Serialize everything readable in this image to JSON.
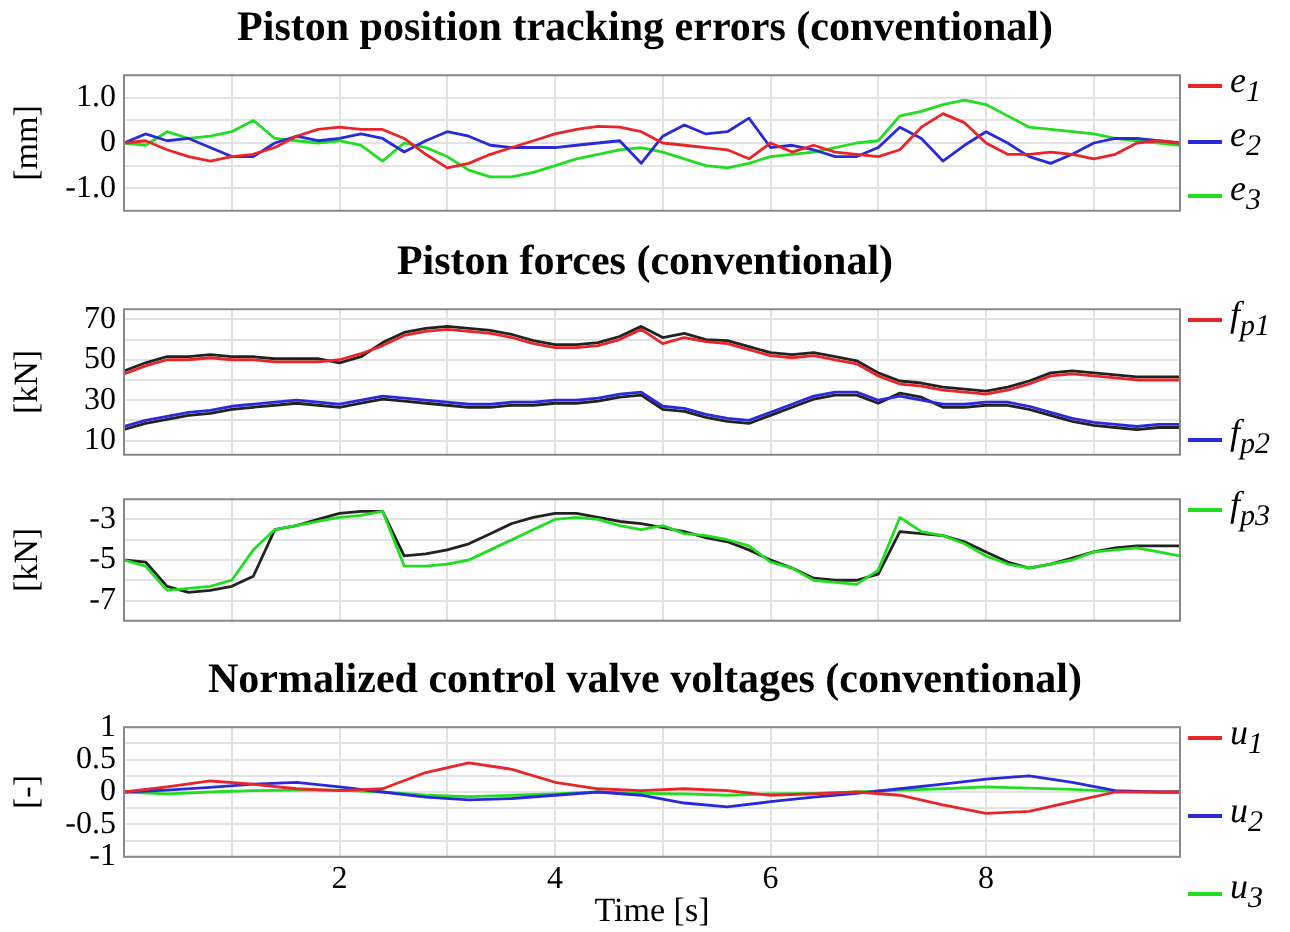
{
  "chart_data": [
    {
      "type": "line",
      "title": "Piston position tracking errors (conventional)",
      "ylabel": "[mm]",
      "legend": "right",
      "grid": true,
      "tick_labels": "y",
      "x": [
        0,
        0.2,
        0.4,
        0.6,
        0.8,
        1,
        1.2,
        1.4,
        1.6,
        1.8,
        2,
        2.2,
        2.4,
        2.6,
        2.8,
        3,
        3.2,
        3.4,
        3.6,
        3.8,
        4,
        4.2,
        4.4,
        4.6,
        4.8,
        5,
        5.2,
        5.4,
        5.6,
        5.8,
        6,
        6.2,
        6.4,
        6.6,
        6.8,
        7,
        7.2,
        7.4,
        7.6,
        7.8,
        8,
        8.2,
        8.4,
        8.6,
        8.8,
        9,
        9.2,
        9.4,
        9.6,
        9.8
      ],
      "xlim": [
        0,
        9.8
      ],
      "xticks": [
        {
          "value": 1,
          "label": null
        },
        2,
        {
          "value": 3,
          "label": null
        },
        4,
        {
          "value": 5,
          "label": null
        },
        6,
        {
          "value": 7,
          "label": null
        },
        8,
        {
          "value": 9,
          "label": null
        }
      ],
      "ylim": [
        -1.5,
        1.5
      ],
      "yticks": [
        {
          "value": -1,
          "label": "-1.0"
        },
        {
          "value": -0.5,
          "label": null
        },
        0,
        {
          "value": 0.5,
          "label": null
        },
        {
          "value": 1,
          "label": "1.0"
        }
      ],
      "series": [
        {
          "name": "e$_{1}$",
          "color": "#e8262a",
          "values": [
            0,
            0.05,
            -0.15,
            -0.3,
            -0.4,
            -0.3,
            -0.25,
            -0.1,
            0.15,
            0.3,
            0.35,
            0.3,
            0.3,
            0.1,
            -0.25,
            -0.55,
            -0.45,
            -0.25,
            -0.1,
            0.05,
            0.2,
            0.3,
            0.37,
            0.35,
            0.25,
            0,
            -0.05,
            -0.1,
            -0.15,
            -0.35,
            0,
            -0.2,
            -0.05,
            -0.2,
            -0.25,
            -0.3,
            -0.15,
            0.35,
            0.65,
            0.45,
            0,
            -0.25,
            -0.25,
            -0.2,
            -0.25,
            -0.35,
            -0.25,
            0,
            0.05,
            0
          ]
        },
        {
          "name": "e$_{2}$",
          "color": "#2a2ad8",
          "values": [
            0,
            0.2,
            0.05,
            0.1,
            -0.1,
            -0.3,
            -0.3,
            0,
            0.15,
            0.05,
            0.1,
            0.2,
            0.1,
            -0.2,
            0.05,
            0.25,
            0.15,
            -0.05,
            -0.1,
            -0.1,
            -0.1,
            -0.05,
            0,
            0.05,
            -0.45,
            0.15,
            0.4,
            0.2,
            0.25,
            0.55,
            -0.1,
            -0.05,
            -0.15,
            -0.3,
            -0.3,
            -0.1,
            0.35,
            0.1,
            -0.4,
            -0.05,
            0.25,
            0,
            -0.3,
            -0.45,
            -0.25,
            0,
            0.1,
            0.1,
            0.05,
            0
          ]
        },
        {
          "name": "e$_{3}$",
          "color": "#22dd22",
          "values": [
            0,
            -0.05,
            0.25,
            0.1,
            0.15,
            0.25,
            0.5,
            0.1,
            0.05,
            0,
            0.05,
            -0.05,
            -0.4,
            0,
            -0.1,
            -0.3,
            -0.6,
            -0.75,
            -0.75,
            -0.65,
            -0.5,
            -0.35,
            -0.25,
            -0.15,
            -0.1,
            -0.2,
            -0.35,
            -0.5,
            -0.55,
            -0.45,
            -0.3,
            -0.25,
            -0.2,
            -0.1,
            0,
            0.05,
            0.6,
            0.7,
            0.85,
            0.95,
            0.85,
            0.6,
            0.35,
            0.3,
            0.25,
            0.2,
            0.1,
            0.05,
            0,
            -0.05
          ]
        }
      ]
    },
    {
      "type": "line",
      "title": "Piston forces (conventional)",
      "ylabel": "[kN]",
      "legend": "right",
      "grid": true,
      "tick_labels": "y",
      "x": [
        0,
        0.2,
        0.4,
        0.6,
        0.8,
        1,
        1.2,
        1.4,
        1.6,
        1.8,
        2,
        2.2,
        2.4,
        2.6,
        2.8,
        3,
        3.2,
        3.4,
        3.6,
        3.8,
        4,
        4.2,
        4.4,
        4.6,
        4.8,
        5,
        5.2,
        5.4,
        5.6,
        5.8,
        6,
        6.2,
        6.4,
        6.6,
        6.8,
        7,
        7.2,
        7.4,
        7.6,
        7.8,
        8,
        8.2,
        8.4,
        8.6,
        8.8,
        9,
        9.2,
        9.4,
        9.6,
        9.8
      ],
      "xlim": [
        0,
        9.8
      ],
      "xticks": [
        {
          "value": 1,
          "label": null
        },
        2,
        {
          "value": 3,
          "label": null
        },
        4,
        {
          "value": 5,
          "label": null
        },
        6,
        {
          "value": 7,
          "label": null
        },
        8,
        {
          "value": 9,
          "label": null
        }
      ],
      "ylim": [
        3,
        75
      ],
      "yticks": [
        10,
        {
          "value": 20,
          "label": null
        },
        30,
        {
          "value": 40,
          "label": null
        },
        50,
        {
          "value": 60,
          "label": null
        },
        70
      ],
      "series": [
        {
          "name": "f$_{p1}$",
          "color": "#e8262a",
          "values": [
            43,
            47,
            50,
            50,
            51,
            50,
            50,
            49,
            49,
            49,
            50,
            53,
            57,
            62,
            64,
            65,
            64,
            63,
            61,
            58,
            56,
            56,
            57,
            60,
            65,
            58,
            61,
            59,
            58,
            55,
            52,
            51,
            52,
            50,
            48,
            42,
            38,
            37,
            35,
            34,
            33,
            35,
            38,
            42,
            43,
            42,
            41,
            40,
            40,
            40
          ]
        },
        {
          "name": "f$_{p2}$",
          "color": "#2a2ad8",
          "values": [
            17,
            20,
            22,
            24,
            25,
            27,
            28,
            29,
            30,
            29,
            28,
            30,
            32,
            31,
            30,
            29,
            28,
            28,
            29,
            29,
            30,
            30,
            31,
            33,
            34,
            27,
            26,
            23,
            21,
            20,
            24,
            28,
            32,
            34,
            34,
            30,
            32,
            30,
            28,
            28,
            29,
            29,
            27,
            24,
            21,
            19,
            18,
            17,
            18,
            18
          ]
        },
        {
          "color": "#222222",
          "values": [
            44.5,
            48.5,
            51.5,
            51.5,
            52.5,
            51.5,
            51.5,
            50.5,
            50.5,
            50.5,
            48.5,
            51.5,
            58.5,
            63.5,
            65.5,
            66.5,
            65.5,
            64.5,
            62.5,
            59.5,
            57.5,
            57.5,
            58.5,
            61.5,
            66.5,
            61,
            63,
            60,
            59.5,
            56.5,
            53.5,
            52.5,
            53.5,
            51.5,
            49.5,
            43.5,
            39.5,
            38.5,
            36.5,
            35.5,
            34.5,
            36.5,
            39.5,
            43.5,
            44.5,
            43.5,
            42.5,
            41.5,
            41.5,
            41.5
          ]
        },
        {
          "color": "#222222",
          "values": [
            15.5,
            18.5,
            20.5,
            22.5,
            23.5,
            25.5,
            26.5,
            27.5,
            28.5,
            27.5,
            26.5,
            28.5,
            30.5,
            29.5,
            28.5,
            27.5,
            26.5,
            26.5,
            27.5,
            27.5,
            28.5,
            28.5,
            29.5,
            31.5,
            32.5,
            25.5,
            24.5,
            21.5,
            19.5,
            18.5,
            22.5,
            26.5,
            30.5,
            32.5,
            32.5,
            28.5,
            33.5,
            31.5,
            26.5,
            26.5,
            27.5,
            27.5,
            25.5,
            22.5,
            19.5,
            17.5,
            16.5,
            15.5,
            16.5,
            16.5
          ]
        }
      ]
    },
    {
      "type": "line",
      "ylabel": "[kN]",
      "legend": "right",
      "grid": true,
      "tick_labels": "y",
      "x": [
        0,
        0.2,
        0.4,
        0.6,
        0.8,
        1,
        1.2,
        1.4,
        1.6,
        1.8,
        2,
        2.2,
        2.4,
        2.6,
        2.8,
        3,
        3.2,
        3.4,
        3.6,
        3.8,
        4,
        4.2,
        4.4,
        4.6,
        4.8,
        5,
        5.2,
        5.4,
        5.6,
        5.8,
        6,
        6.2,
        6.4,
        6.6,
        6.8,
        7,
        7.2,
        7.4,
        7.6,
        7.8,
        8,
        8.2,
        8.4,
        8.6,
        8.8,
        9,
        9.2,
        9.4,
        9.6,
        9.8
      ],
      "xlim": [
        0,
        9.8
      ],
      "xticks": [
        {
          "value": 1,
          "label": null
        },
        2,
        {
          "value": 3,
          "label": null
        },
        4,
        {
          "value": 5,
          "label": null
        },
        6,
        {
          "value": 7,
          "label": null
        },
        8,
        {
          "value": 9,
          "label": null
        }
      ],
      "ylim": [
        -8,
        -2
      ],
      "yticks": [
        -7,
        {
          "value": -6,
          "label": null
        },
        -5,
        {
          "value": -4,
          "label": null
        },
        -3
      ],
      "series": [
        {
          "name": "f$_{p3}$",
          "color": "#22dd22",
          "values": [
            -5,
            -5.3,
            -6.5,
            -6.4,
            -6.3,
            -6,
            -4.5,
            -3.5,
            -3.3,
            -3.1,
            -2.9,
            -2.8,
            -2.6,
            -5.3,
            -5.3,
            -5.2,
            -5,
            -4.5,
            -4,
            -3.5,
            -3,
            -2.9,
            -3,
            -3.3,
            -3.5,
            -3.3,
            -3.7,
            -3.8,
            -4,
            -4.3,
            -5.1,
            -5.4,
            -6,
            -6.1,
            -6.2,
            -5.5,
            -2.9,
            -3.6,
            -3.8,
            -4.2,
            -4.8,
            -5.2,
            -5.4,
            -5.2,
            -5,
            -4.6,
            -4.5,
            -4.4,
            -4.6,
            -4.8
          ]
        },
        {
          "color": "#222222",
          "values": [
            -5,
            -5.1,
            -6.3,
            -6.6,
            -6.5,
            -6.3,
            -5.8,
            -3.5,
            -3.3,
            -3,
            -2.7,
            -2.6,
            -2.6,
            -4.8,
            -4.7,
            -4.5,
            -4.2,
            -3.7,
            -3.2,
            -2.9,
            -2.7,
            -2.7,
            -2.9,
            -3.1,
            -3.2,
            -3.4,
            -3.6,
            -3.9,
            -4.1,
            -4.5,
            -5,
            -5.4,
            -5.9,
            -6,
            -6,
            -5.7,
            -3.6,
            -3.7,
            -3.8,
            -4.1,
            -4.6,
            -5.1,
            -5.4,
            -5.2,
            -4.9,
            -4.6,
            -4.4,
            -4.3,
            -4.3,
            -4.3
          ]
        }
      ]
    },
    {
      "type": "line",
      "title": "Normalized control valve voltages (conventional)",
      "xlabel": "Time [s]",
      "ylabel": "[-]",
      "legend": "right",
      "grid": true,
      "x": [
        0,
        0.4,
        0.8,
        1.2,
        1.6,
        2,
        2.4,
        2.8,
        3.2,
        3.6,
        4,
        4.4,
        4.8,
        5.2,
        5.6,
        6,
        6.4,
        6.8,
        7.2,
        7.6,
        8,
        8.4,
        8.8,
        9.2,
        9.6,
        9.8
      ],
      "xlim": [
        0,
        9.8
      ],
      "xticks": [
        {
          "value": 1,
          "label": null
        },
        2,
        {
          "value": 3,
          "label": null
        },
        4,
        {
          "value": 5,
          "label": null
        },
        6,
        {
          "value": 7,
          "label": null
        },
        8,
        {
          "value": 9,
          "label": null
        }
      ],
      "ylim": [
        -1,
        1
      ],
      "yticks": [
        -1,
        {
          "value": -0.75,
          "label": null
        },
        -0.5,
        {
          "value": -0.25,
          "label": null
        },
        0,
        {
          "value": 0.25,
          "label": null
        },
        0.5,
        {
          "value": 0.75,
          "label": null
        },
        1
      ],
      "series": [
        {
          "name": "u$_{1}$",
          "color": "#e8262a",
          "values": [
            0,
            0.08,
            0.17,
            0.12,
            0.05,
            0.02,
            0.05,
            0.3,
            0.45,
            0.35,
            0.15,
            0.05,
            0.02,
            0.05,
            0.02,
            -0.05,
            -0.03,
            0,
            -0.05,
            -0.2,
            -0.33,
            -0.3,
            -0.15,
            0,
            0,
            0
          ]
        },
        {
          "name": "u$_{2}$",
          "color": "#2a2ad8",
          "values": [
            0,
            0.03,
            0.07,
            0.12,
            0.15,
            0.08,
            0,
            -0.08,
            -0.12,
            -0.1,
            -0.05,
            0,
            -0.05,
            -0.17,
            -0.23,
            -0.15,
            -0.08,
            -0.02,
            0.05,
            0.12,
            0.2,
            0.25,
            0.15,
            0.02,
            0,
            0
          ]
        },
        {
          "name": "u$_{3}$",
          "color": "#22dd22",
          "values": [
            0,
            -0.03,
            0,
            0.02,
            0.03,
            0.03,
            0,
            -0.05,
            -0.07,
            -0.05,
            -0.03,
            0,
            -0.02,
            -0.03,
            -0.05,
            -0.03,
            -0.02,
            0,
            0.03,
            0.05,
            0.08,
            0.06,
            0.04,
            0.01,
            0,
            0
          ]
        }
      ]
    }
  ]
}
